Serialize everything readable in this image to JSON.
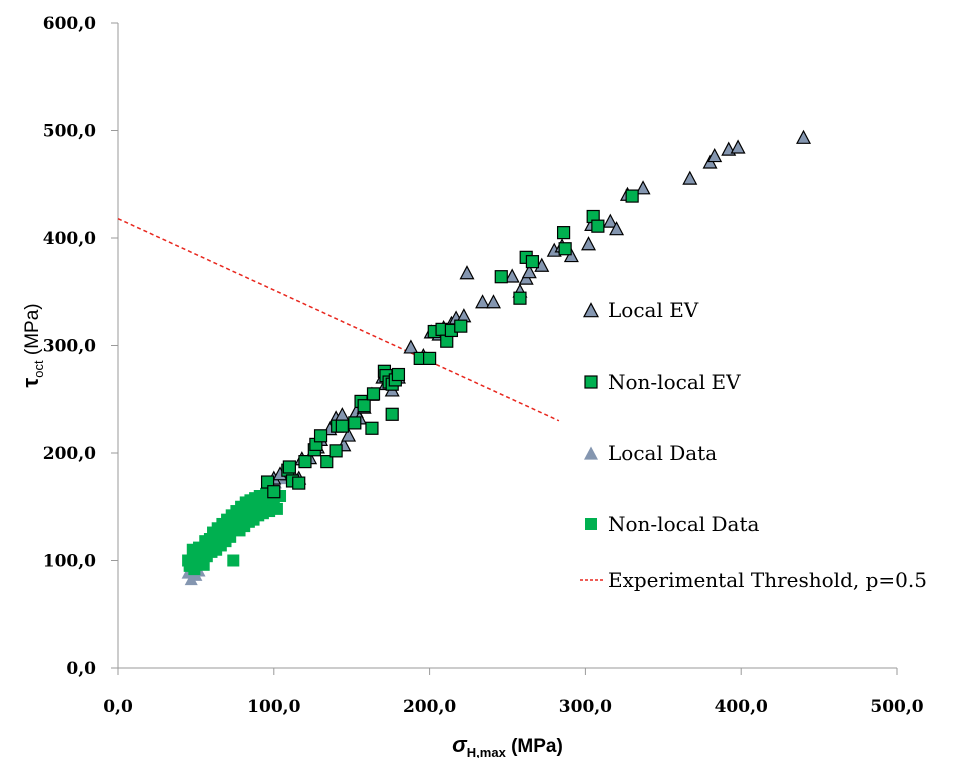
{
  "chart_data": {
    "type": "scatter",
    "xlabel": {
      "symbol": "σ",
      "sub": "H,max",
      "unit": " (MPa)"
    },
    "ylabel": {
      "symbol": "τ",
      "sub": "oct",
      "unit": " (MPa)"
    },
    "xlim": [
      0,
      500
    ],
    "ylim": [
      0,
      600
    ],
    "x_ticks": [
      0,
      100,
      200,
      300,
      400,
      500
    ],
    "y_ticks": [
      0,
      100,
      200,
      300,
      400,
      500,
      600
    ],
    "x_tick_labels": [
      "0,0",
      "100,0",
      "200,0",
      "300,0",
      "400,0",
      "500,0"
    ],
    "y_tick_labels": [
      "0,0",
      "100,0",
      "200,0",
      "300,0",
      "400,0",
      "500,0",
      "600,0"
    ],
    "grid": false,
    "legend_position": "right",
    "series": [
      {
        "name": "Local EV",
        "marker": "triangle",
        "color": "#8496b0",
        "outline": "#000000",
        "points": [
          [
            100,
            176
          ],
          [
            104,
            180
          ],
          [
            112,
            180
          ],
          [
            116,
            176
          ],
          [
            118,
            194
          ],
          [
            123,
            195
          ],
          [
            128,
            205
          ],
          [
            130,
            212
          ],
          [
            136,
            222
          ],
          [
            140,
            232
          ],
          [
            144,
            235
          ],
          [
            145,
            207
          ],
          [
            148,
            216
          ],
          [
            153,
            238
          ],
          [
            155,
            232
          ],
          [
            158,
            242
          ],
          [
            163,
            254
          ],
          [
            170,
            270
          ],
          [
            172,
            264
          ],
          [
            176,
            258
          ],
          [
            180,
            270
          ],
          [
            188,
            298
          ],
          [
            196,
            290
          ],
          [
            201,
            312
          ],
          [
            206,
            310
          ],
          [
            209,
            316
          ],
          [
            214,
            320
          ],
          [
            217,
            325
          ],
          [
            222,
            327
          ],
          [
            224,
            367
          ],
          [
            234,
            340
          ],
          [
            241,
            340
          ],
          [
            253,
            364
          ],
          [
            258,
            350
          ],
          [
            262,
            362
          ],
          [
            264,
            368
          ],
          [
            272,
            374
          ],
          [
            280,
            388
          ],
          [
            285,
            392
          ],
          [
            291,
            383
          ],
          [
            302,
            394
          ],
          [
            304,
            412
          ],
          [
            316,
            415
          ],
          [
            320,
            408
          ],
          [
            327,
            440
          ],
          [
            337,
            446
          ],
          [
            367,
            455
          ],
          [
            380,
            470
          ],
          [
            383,
            476
          ],
          [
            392,
            482
          ],
          [
            398,
            484
          ],
          [
            440,
            493
          ]
        ]
      },
      {
        "name": "Non-local EV",
        "marker": "square",
        "color": "#00b050",
        "outline": "#000000",
        "points": [
          [
            96,
            173
          ],
          [
            100,
            164
          ],
          [
            109,
            184
          ],
          [
            110,
            187
          ],
          [
            112,
            174
          ],
          [
            116,
            172
          ],
          [
            120,
            192
          ],
          [
            126,
            203
          ],
          [
            127,
            208
          ],
          [
            130,
            216
          ],
          [
            134,
            192
          ],
          [
            140,
            202
          ],
          [
            141,
            225
          ],
          [
            144,
            225
          ],
          [
            152,
            228
          ],
          [
            156,
            248
          ],
          [
            158,
            244
          ],
          [
            163,
            223
          ],
          [
            164,
            255
          ],
          [
            171,
            276
          ],
          [
            172,
            272
          ],
          [
            174,
            266
          ],
          [
            176,
            236
          ],
          [
            176,
            264
          ],
          [
            178,
            268
          ],
          [
            180,
            273
          ],
          [
            194,
            288
          ],
          [
            200,
            288
          ],
          [
            203,
            313
          ],
          [
            208,
            315
          ],
          [
            211,
            304
          ],
          [
            214,
            314
          ],
          [
            220,
            318
          ],
          [
            246,
            364
          ],
          [
            258,
            344
          ],
          [
            262,
            382
          ],
          [
            266,
            378
          ],
          [
            286,
            405
          ],
          [
            287,
            390
          ],
          [
            305,
            420
          ],
          [
            308,
            411
          ],
          [
            330,
            439
          ]
        ]
      },
      {
        "name": "Local Data",
        "marker": "triangle",
        "color": "#8496b0",
        "outline": "none",
        "points": [
          [
            45,
            88
          ],
          [
            47,
            82
          ],
          [
            48,
            93
          ],
          [
            50,
            86
          ],
          [
            52,
            90
          ],
          [
            55,
            104
          ],
          [
            58,
            118
          ],
          [
            62,
            124
          ],
          [
            66,
            130
          ],
          [
            70,
            138
          ],
          [
            74,
            142
          ],
          [
            78,
            148
          ],
          [
            84,
            152
          ],
          [
            90,
            158
          ],
          [
            96,
            164
          ],
          [
            101,
            172
          ],
          [
            107,
            176
          ],
          [
            112,
            178
          ]
        ]
      },
      {
        "name": "Non-local Data",
        "marker": "square",
        "color": "#00b050",
        "outline": "none",
        "points": [
          [
            45,
            100
          ],
          [
            46,
            95
          ],
          [
            48,
            110
          ],
          [
            49,
            92
          ],
          [
            50,
            104
          ],
          [
            51,
            98
          ],
          [
            52,
            112
          ],
          [
            53,
            100
          ],
          [
            54,
            108
          ],
          [
            55,
            96
          ],
          [
            56,
            118
          ],
          [
            57,
            104
          ],
          [
            58,
            112
          ],
          [
            59,
            120
          ],
          [
            60,
            108
          ],
          [
            61,
            126
          ],
          [
            62,
            116
          ],
          [
            63,
            110
          ],
          [
            64,
            130
          ],
          [
            65,
            122
          ],
          [
            66,
            114
          ],
          [
            67,
            134
          ],
          [
            68,
            124
          ],
          [
            69,
            118
          ],
          [
            70,
            138
          ],
          [
            71,
            128
          ],
          [
            72,
            122
          ],
          [
            73,
            142
          ],
          [
            74,
            100
          ],
          [
            75,
            130
          ],
          [
            76,
            146
          ],
          [
            77,
            136
          ],
          [
            78,
            128
          ],
          [
            79,
            150
          ],
          [
            80,
            140
          ],
          [
            81,
            132
          ],
          [
            82,
            154
          ],
          [
            83,
            144
          ],
          [
            84,
            136
          ],
          [
            85,
            156
          ],
          [
            86,
            148
          ],
          [
            87,
            138
          ],
          [
            88,
            158
          ],
          [
            89,
            150
          ],
          [
            90,
            142
          ],
          [
            91,
            160
          ],
          [
            92,
            152
          ],
          [
            93,
            144
          ],
          [
            94,
            156
          ],
          [
            95,
            162
          ],
          [
            96,
            150
          ],
          [
            97,
            146
          ],
          [
            98,
            158
          ],
          [
            100,
            154
          ],
          [
            102,
            148
          ],
          [
            104,
            160
          ]
        ]
      },
      {
        "name": "Experimental Threshold, p=0.5",
        "marker": "dashed-line",
        "color": "#e8271e",
        "points": [
          [
            0,
            418
          ],
          [
            283,
            230
          ]
        ]
      }
    ]
  }
}
